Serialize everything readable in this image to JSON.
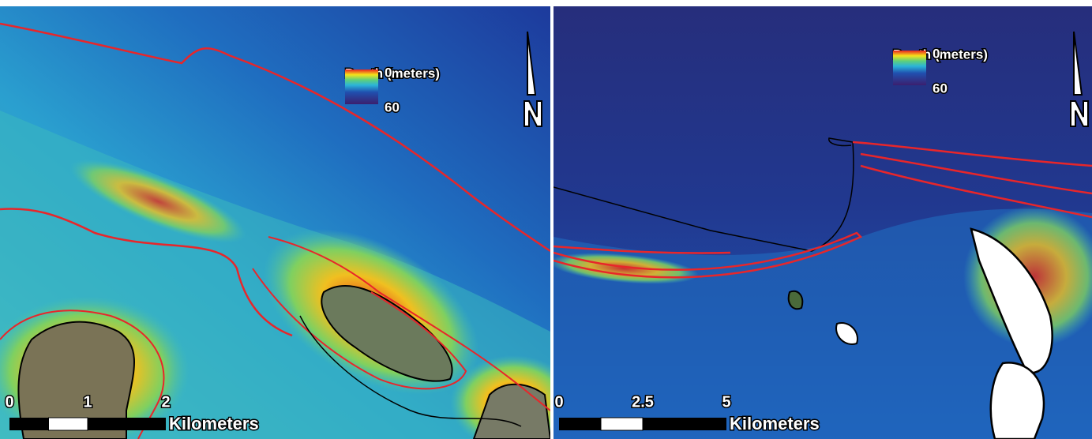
{
  "panels": [
    {
      "legend": {
        "title": "Depth (meters)",
        "min": 0,
        "max": 60
      },
      "scale": {
        "ticks": [
          0,
          1,
          2
        ],
        "unit": "Kilometers"
      }
    },
    {
      "legend": {
        "title": "Depth (meters)",
        "min": 0,
        "max": 60
      },
      "scale": {
        "ticks": [
          0,
          2.5,
          5
        ],
        "unit": "Kilometers"
      }
    }
  ]
}
